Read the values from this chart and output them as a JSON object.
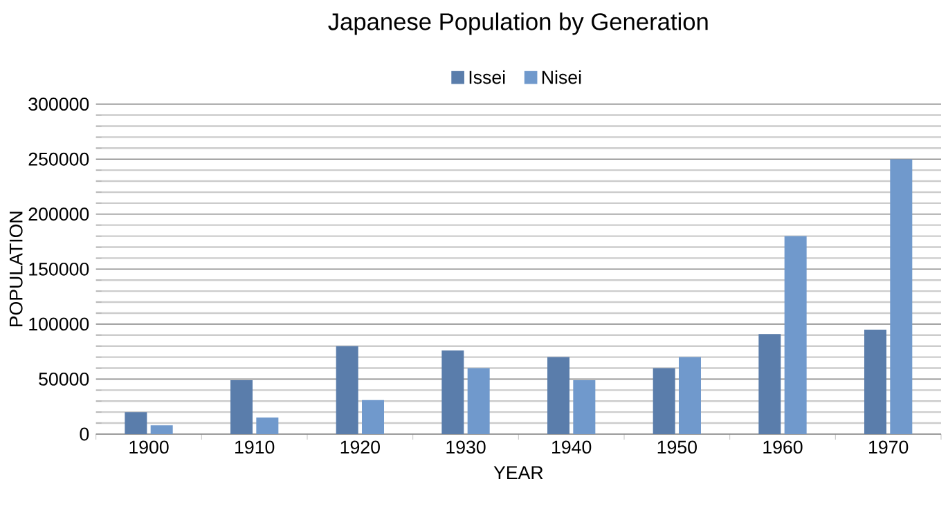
{
  "chart_data": {
    "type": "bar",
    "title": "Japanese Population by Generation",
    "xlabel": "YEAR",
    "ylabel": "POPULATION",
    "categories": [
      "1900",
      "1910",
      "1920",
      "1930",
      "1940",
      "1950",
      "1960",
      "1970"
    ],
    "series": [
      {
        "name": "Issei",
        "color": "#5a7dab",
        "values": [
          20000,
          49000,
          80000,
          76000,
          70000,
          60000,
          91000,
          95000
        ]
      },
      {
        "name": "Nisei",
        "color": "#7099cc",
        "values": [
          8000,
          15000,
          31000,
          60000,
          49000,
          70000,
          180000,
          250000
        ]
      }
    ],
    "ylim": [
      0,
      300000
    ],
    "yticks": [
      0,
      50000,
      100000,
      150000,
      200000,
      250000,
      300000
    ],
    "grid": "y",
    "legend": "top"
  }
}
